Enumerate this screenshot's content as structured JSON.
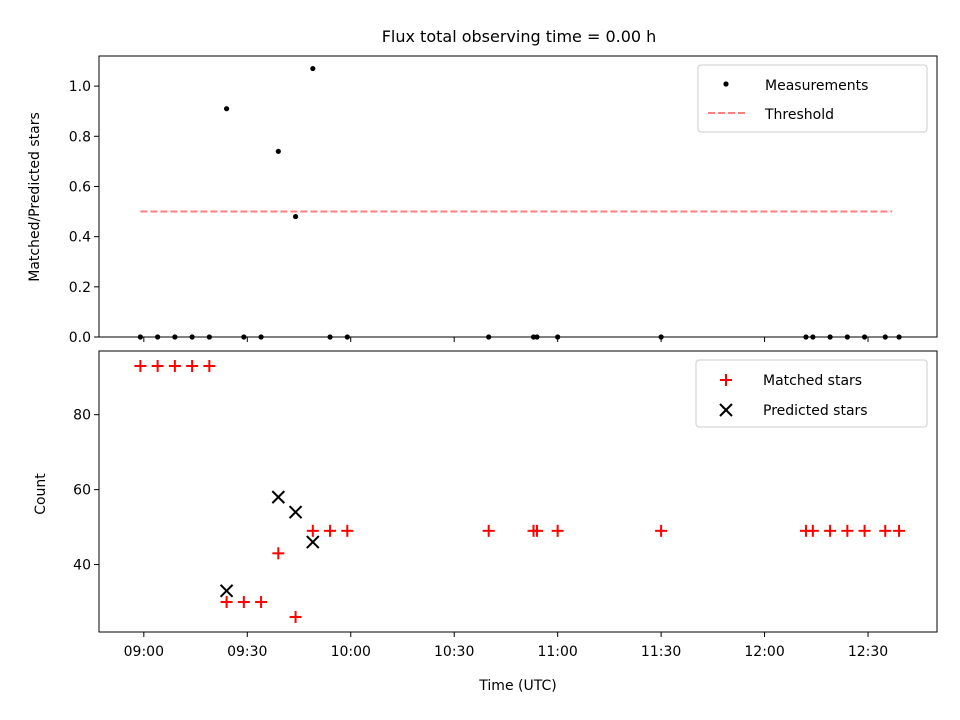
{
  "chart_data": [
    {
      "type": "scatter",
      "title": "Flux total observing time = 0.00 h",
      "xlabel": "",
      "ylabel": "Matched/Predicted stars",
      "xlim": [
        "08:47",
        "12:50"
      ],
      "ylim": [
        0,
        1.12
      ],
      "yticks": [
        0.0,
        0.2,
        0.4,
        0.6,
        0.8,
        1.0
      ],
      "ytick_labels": [
        "0.0",
        "0.2",
        "0.4",
        "0.6",
        "0.8",
        "1.0"
      ],
      "legend_position": "top-right",
      "series": [
        {
          "name": "Measurements",
          "marker": "dot",
          "color": "#000000",
          "points": [
            [
              "08:59",
              0.0
            ],
            [
              "09:04",
              0.0
            ],
            [
              "09:09",
              0.0
            ],
            [
              "09:14",
              0.0
            ],
            [
              "09:19",
              0.0
            ],
            [
              "09:24",
              0.91
            ],
            [
              "09:29",
              0.0
            ],
            [
              "09:34",
              0.0
            ],
            [
              "09:39",
              0.74
            ],
            [
              "09:44",
              0.48
            ],
            [
              "09:49",
              1.07
            ],
            [
              "09:54",
              0.0
            ],
            [
              "09:59",
              0.0
            ],
            [
              "10:40",
              0.0
            ],
            [
              "10:53",
              0.0
            ],
            [
              "10:54",
              0.0
            ],
            [
              "11:00",
              0.0
            ],
            [
              "11:30",
              0.0
            ],
            [
              "12:12",
              0.0
            ],
            [
              "12:14",
              0.0
            ],
            [
              "12:19",
              0.0
            ],
            [
              "12:24",
              0.0
            ],
            [
              "12:29",
              0.0
            ],
            [
              "12:35",
              0.0
            ],
            [
              "12:39",
              0.0
            ]
          ]
        },
        {
          "name": "Threshold",
          "marker": "dashed-line",
          "color": "#ff7f7f",
          "points": [
            [
              "08:59",
              0.5
            ],
            [
              "12:37",
              0.5
            ]
          ]
        }
      ]
    },
    {
      "type": "scatter",
      "title": "",
      "xlabel": "Time (UTC)",
      "ylabel": "Count",
      "xlim": [
        "08:47",
        "12:50"
      ],
      "ylim": [
        22,
        97
      ],
      "yticks": [
        40,
        60,
        80
      ],
      "ytick_labels": [
        "40",
        "60",
        "80"
      ],
      "xticks": [
        "09:00",
        "09:30",
        "10:00",
        "10:30",
        "11:00",
        "11:30",
        "12:00",
        "12:30"
      ],
      "legend_position": "top-right",
      "series": [
        {
          "name": "Matched stars",
          "marker": "plus",
          "color": "#ff0000",
          "points": [
            [
              "08:59",
              93
            ],
            [
              "09:04",
              93
            ],
            [
              "09:09",
              93
            ],
            [
              "09:14",
              93
            ],
            [
              "09:19",
              93
            ],
            [
              "09:24",
              30
            ],
            [
              "09:29",
              30
            ],
            [
              "09:34",
              30
            ],
            [
              "09:39",
              43
            ],
            [
              "09:44",
              26
            ],
            [
              "09:49",
              49
            ],
            [
              "09:54",
              49
            ],
            [
              "09:59",
              49
            ],
            [
              "10:40",
              49
            ],
            [
              "10:53",
              49
            ],
            [
              "10:54",
              49
            ],
            [
              "11:00",
              49
            ],
            [
              "11:30",
              49
            ],
            [
              "12:12",
              49
            ],
            [
              "12:14",
              49
            ],
            [
              "12:19",
              49
            ],
            [
              "12:24",
              49
            ],
            [
              "12:29",
              49
            ],
            [
              "12:35",
              49
            ],
            [
              "12:39",
              49
            ]
          ]
        },
        {
          "name": "Predicted stars",
          "marker": "x",
          "color": "#000000",
          "points": [
            [
              "09:24",
              33
            ],
            [
              "09:39",
              58
            ],
            [
              "09:44",
              54
            ],
            [
              "09:49",
              46
            ]
          ]
        }
      ]
    }
  ]
}
